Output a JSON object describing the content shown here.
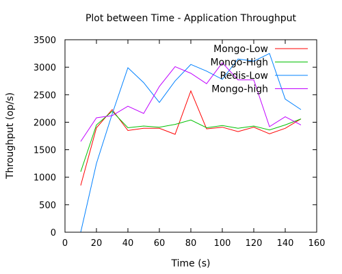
{
  "chart_data": {
    "type": "line",
    "title": "Plot between Time - Application Throughput",
    "xlabel": "Time (s)",
    "ylabel": "Throughput (op/s)",
    "xlim": [
      0,
      160
    ],
    "ylim": [
      0,
      3500
    ],
    "xticks": [
      0,
      20,
      40,
      60,
      80,
      100,
      120,
      140,
      160
    ],
    "yticks": [
      0,
      500,
      1000,
      1500,
      2000,
      2500,
      3000,
      3500
    ],
    "grid": false,
    "legend_position": "top-right",
    "x": [
      10,
      20,
      30,
      40,
      50,
      60,
      70,
      80,
      90,
      100,
      110,
      120,
      130,
      140,
      150
    ],
    "series": [
      {
        "name": "Mongo-Low",
        "color": "#ff0000",
        "values": [
          850,
          1900,
          2230,
          1850,
          1890,
          1890,
          1780,
          2570,
          1880,
          1910,
          1830,
          1910,
          1790,
          1890,
          2060
        ]
      },
      {
        "name": "Mongo-High",
        "color": "#00c000",
        "values": [
          1100,
          1950,
          2200,
          1900,
          1930,
          1910,
          1960,
          2040,
          1900,
          1940,
          1890,
          1930,
          1860,
          1950,
          2060
        ]
      },
      {
        "name": "Redis-Low",
        "color": "#0080ff",
        "values": [
          0,
          1250,
          2150,
          2990,
          2720,
          2360,
          2750,
          3050,
          2930,
          2780,
          3150,
          3110,
          3250,
          2420,
          2230
        ]
      },
      {
        "name": "Mongo-high",
        "color": "#c000ff",
        "values": [
          1650,
          2080,
          2120,
          2290,
          2160,
          2650,
          3010,
          2890,
          2700,
          3080,
          2770,
          2770,
          1920,
          2100,
          1950
        ]
      }
    ]
  }
}
